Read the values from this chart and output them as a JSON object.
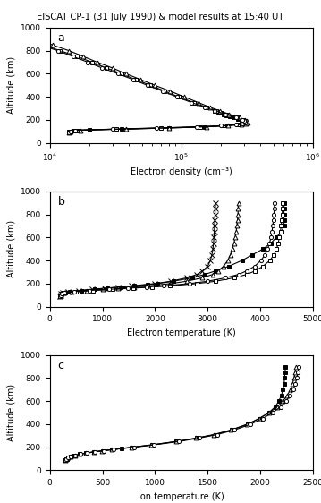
{
  "title": "EISCAT CP-1 (31 July 1990) & model results at 15:40 UT",
  "panel_a": {
    "xlabel": "Electron density (cm⁻³)",
    "xlim_log": [
      4,
      6
    ],
    "xticks_log": [
      4,
      5,
      6
    ],
    "series": [
      {
        "name": "data_squares",
        "alt": [
          90,
          95,
          100,
          105,
          110,
          115,
          120,
          130,
          140,
          150,
          160,
          170,
          180,
          190,
          200,
          210,
          220,
          230,
          240,
          250,
          260,
          270,
          280
        ],
        "val": [
          14000.0,
          14000.0,
          14500.0,
          15000.0,
          16000.0,
          20000.0,
          35000.0,
          80000.0,
          150000.0,
          220000.0,
          270000.0,
          290000.0,
          300000.0,
          295000.0,
          285000.0,
          270000.0,
          250000.0,
          235000.0,
          220000.0,
          210000.0,
          200000.0,
          190000.0,
          180000.0
        ],
        "marker": "s",
        "color": "black",
        "ms": 3.5,
        "lw": 0.8,
        "mfc": "black",
        "mec": "black"
      },
      {
        "name": "model_squares",
        "alt": [
          90,
          100,
          110,
          120,
          130,
          140,
          150,
          160,
          170,
          180,
          190,
          200,
          220,
          250,
          280,
          310,
          350,
          400,
          450,
          500,
          550,
          600,
          650,
          700,
          750,
          800,
          850,
          900
        ],
        "val": [
          14000.0,
          14500.0,
          16000.0,
          32000.0,
          70000.0,
          140000.0,
          210000.0,
          270000.0,
          300000.0,
          310000.0,
          305000.0,
          295000.0,
          265000.0,
          220000.0,
          185000.0,
          155000.0,
          125000.0,
          95000.0,
          75000.0,
          58000.0,
          45000.0,
          35000.0,
          27000.0,
          21000.0,
          16000.0,
          12000.0,
          9000.0,
          7000.0
        ],
        "marker": "s",
        "color": "black",
        "ms": 3.5,
        "lw": 0.8,
        "mfc": "white",
        "mec": "black"
      },
      {
        "name": "model_triangles",
        "alt": [
          90,
          100,
          110,
          120,
          130,
          140,
          150,
          160,
          170,
          180,
          190,
          200,
          220,
          250,
          280,
          310,
          350,
          400,
          450,
          500,
          550,
          600,
          650,
          700,
          750,
          800,
          850,
          900
        ],
        "val": [
          14000.0,
          14500.0,
          17000.0,
          38000.0,
          80000.0,
          155000.0,
          225000.0,
          285000.0,
          310000.0,
          320000.0,
          315000.0,
          305000.0,
          275000.0,
          230000.0,
          195000.0,
          165000.0,
          135000.0,
          105000.0,
          82000.0,
          63000.0,
          49000.0,
          38000.0,
          30000.0,
          23000.0,
          18000.0,
          14000.0,
          10500.0,
          8000.0
        ],
        "marker": "^",
        "color": "black",
        "ms": 3.5,
        "lw": 0.8,
        "mfc": "white",
        "mec": "black"
      },
      {
        "name": "model_diamonds",
        "alt": [
          90,
          100,
          110,
          120,
          130,
          140,
          150,
          160,
          170,
          180,
          190,
          200,
          220,
          250,
          280,
          310,
          350,
          400,
          450,
          500,
          550,
          600,
          650,
          700,
          750,
          800,
          850,
          900
        ],
        "val": [
          14000.0,
          14500.0,
          15500.0,
          30000.0,
          65000.0,
          130000.0,
          200000.0,
          260000.0,
          290000.0,
          305000.0,
          300000.0,
          290000.0,
          260000.0,
          215000.0,
          180000.0,
          150000.0,
          120000.0,
          92000.0,
          72000.0,
          55000.0,
          43000.0,
          33000.0,
          25000.0,
          19500.0,
          15000.0,
          11500.0,
          8500.0,
          6500.0
        ],
        "marker": "o",
        "color": "black",
        "ms": 3.0,
        "lw": 0.8,
        "mfc": "white",
        "mec": "black"
      }
    ]
  },
  "panel_b": {
    "xlabel": "Electron temperature (K)",
    "xlim": [
      0,
      5000
    ],
    "xticks": [
      0,
      1000,
      2000,
      3000,
      4000,
      5000
    ],
    "series": [
      {
        "name": "data_squares",
        "alt": [
          90,
          95,
          100,
          110,
          120,
          130,
          140,
          150,
          160,
          170,
          180,
          190,
          200,
          220,
          250,
          280,
          310,
          350,
          400,
          450,
          500,
          550,
          600,
          650,
          700,
          750,
          800,
          850,
          900
        ],
        "val": [
          200,
          205,
          210,
          220,
          260,
          380,
          600,
          850,
          1100,
          1350,
          1600,
          1850,
          2050,
          2350,
          2700,
          2950,
          3150,
          3400,
          3650,
          3850,
          4050,
          4200,
          4300,
          4400,
          4450,
          4450,
          4450,
          4450,
          4450
        ],
        "marker": "s",
        "color": "black",
        "ms": 3.5,
        "lw": 0.8,
        "mfc": "black",
        "mec": "black"
      },
      {
        "name": "model_plus",
        "alt": [
          90,
          100,
          110,
          120,
          130,
          140,
          150,
          160,
          170,
          180,
          200,
          220,
          250,
          280,
          310,
          350,
          400,
          450,
          500,
          550,
          600,
          650,
          700,
          750,
          800,
          850,
          900
        ],
        "val": [
          200,
          205,
          215,
          250,
          350,
          550,
          800,
          1050,
          1300,
          1550,
          2000,
          2300,
          2600,
          2800,
          2900,
          3000,
          3050,
          3080,
          3100,
          3110,
          3120,
          3125,
          3130,
          3135,
          3140,
          3145,
          3150
        ],
        "marker": "x",
        "color": "black",
        "ms": 4,
        "lw": 0.8,
        "mfc": "black",
        "mec": "black"
      },
      {
        "name": "model_triangles",
        "alt": [
          90,
          100,
          110,
          120,
          130,
          140,
          150,
          160,
          170,
          180,
          200,
          220,
          250,
          280,
          310,
          350,
          400,
          450,
          500,
          550,
          600,
          650,
          700,
          750,
          800,
          850,
          900
        ],
        "val": [
          200,
          205,
          220,
          270,
          420,
          700,
          1000,
          1300,
          1600,
          1880,
          2300,
          2600,
          2900,
          3100,
          3200,
          3300,
          3380,
          3430,
          3470,
          3500,
          3520,
          3540,
          3555,
          3565,
          3575,
          3580,
          3585
        ],
        "marker": "^",
        "color": "black",
        "ms": 3.5,
        "lw": 0.8,
        "mfc": "white",
        "mec": "black"
      },
      {
        "name": "model_squares",
        "alt": [
          90,
          100,
          110,
          120,
          130,
          140,
          150,
          160,
          170,
          180,
          200,
          220,
          250,
          280,
          310,
          350,
          400,
          450,
          500,
          550,
          600,
          650,
          700,
          750,
          800,
          850,
          900
        ],
        "val": [
          200,
          205,
          225,
          300,
          500,
          820,
          1200,
          1580,
          1950,
          2280,
          2800,
          3150,
          3500,
          3750,
          3900,
          4050,
          4180,
          4260,
          4310,
          4340,
          4360,
          4380,
          4395,
          4405,
          4415,
          4420,
          4425
        ],
        "marker": "s",
        "color": "black",
        "ms": 3.5,
        "lw": 0.8,
        "mfc": "white",
        "mec": "black"
      },
      {
        "name": "model_diamonds",
        "alt": [
          90,
          100,
          110,
          120,
          130,
          140,
          150,
          160,
          170,
          180,
          200,
          220,
          250,
          280,
          310,
          350,
          400,
          450,
          500,
          550,
          600,
          650,
          700,
          750,
          800,
          850,
          900
        ],
        "val": [
          200,
          205,
          222,
          285,
          460,
          760,
          1120,
          1490,
          1840,
          2160,
          2660,
          3000,
          3340,
          3590,
          3740,
          3890,
          4010,
          4090,
          4140,
          4175,
          4200,
          4220,
          4235,
          4248,
          4258,
          4265,
          4270
        ],
        "marker": "o",
        "color": "black",
        "ms": 3.0,
        "lw": 0.8,
        "mfc": "white",
        "mec": "black"
      }
    ]
  },
  "panel_c": {
    "xlabel": "Ion temperature (K)",
    "xlim": [
      0,
      2500
    ],
    "xticks": [
      0,
      500,
      1000,
      1500,
      2000,
      2500
    ],
    "series": [
      {
        "name": "data_squares",
        "alt": [
          90,
          95,
          100,
          110,
          120,
          130,
          140,
          150,
          160,
          170,
          180,
          190,
          200,
          220,
          250,
          280,
          310,
          350,
          400,
          450,
          500,
          550,
          600,
          650,
          700,
          750,
          800,
          850,
          900
        ],
        "val": [
          150,
          155,
          162,
          175,
          200,
          235,
          285,
          345,
          415,
          500,
          590,
          685,
          780,
          970,
          1200,
          1400,
          1570,
          1730,
          1880,
          1990,
          2080,
          2140,
          2175,
          2200,
          2215,
          2225,
          2230,
          2235,
          2238
        ],
        "marker": "s",
        "color": "black",
        "ms": 3.5,
        "lw": 0.8,
        "mfc": "black",
        "mec": "black"
      },
      {
        "name": "model_triangles",
        "alt": [
          90,
          100,
          110,
          120,
          130,
          140,
          150,
          160,
          170,
          180,
          200,
          220,
          250,
          280,
          310,
          350,
          400,
          450,
          500,
          550,
          600,
          650,
          700,
          750,
          800,
          850,
          900
        ],
        "val": [
          150,
          160,
          172,
          200,
          238,
          285,
          345,
          415,
          498,
          588,
          775,
          960,
          1200,
          1390,
          1555,
          1720,
          1875,
          1990,
          2085,
          2160,
          2215,
          2255,
          2285,
          2305,
          2320,
          2330,
          2340
        ],
        "marker": "^",
        "color": "black",
        "ms": 3.5,
        "lw": 0.8,
        "mfc": "white",
        "mec": "black"
      },
      {
        "name": "model_diamonds",
        "alt": [
          90,
          100,
          110,
          120,
          130,
          140,
          150,
          160,
          170,
          180,
          200,
          220,
          250,
          280,
          310,
          350,
          400,
          450,
          500,
          550,
          600,
          650,
          700,
          750,
          800,
          850,
          900
        ],
        "val": [
          150,
          160,
          173,
          202,
          242,
          292,
          355,
          428,
          514,
          607,
          798,
          985,
          1228,
          1420,
          1588,
          1754,
          1908,
          2022,
          2116,
          2190,
          2244,
          2283,
          2312,
          2332,
          2347,
          2357,
          2367
        ],
        "marker": "o",
        "color": "black",
        "ms": 3.0,
        "lw": 0.8,
        "mfc": "white",
        "mec": "black"
      }
    ]
  }
}
